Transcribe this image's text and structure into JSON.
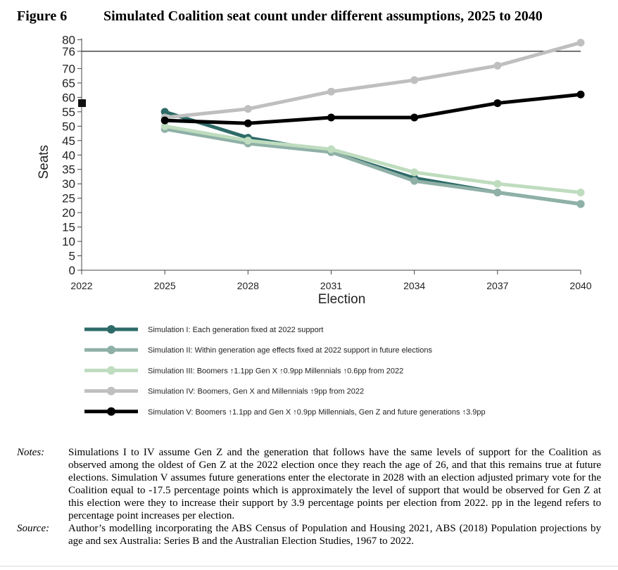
{
  "figure": {
    "label": "Figure 6",
    "title": "Simulated Coalition seat count under different assumptions, 2025 to 2040"
  },
  "chart_data": {
    "type": "line",
    "xlabel": "Election",
    "ylabel": "Seats",
    "x": [
      2022,
      2025,
      2028,
      2031,
      2034,
      2037,
      2040
    ],
    "xlim": [
      2022,
      2040
    ],
    "ylim": [
      0,
      80
    ],
    "yticks": [
      0,
      5,
      10,
      15,
      20,
      25,
      30,
      35,
      40,
      45,
      50,
      55,
      60,
      65,
      70,
      76,
      80
    ],
    "reference_line": {
      "y": 76
    },
    "marker_2022": {
      "x": 2022,
      "y": 58
    },
    "grid": false,
    "legend_position": "bottom",
    "series": [
      {
        "name": "Simulation I:  Each generation fixed at 2022 support",
        "color": "#2e6b68",
        "x": [
          2025,
          2028,
          2031,
          2034,
          2037,
          2040
        ],
        "values": [
          55,
          46,
          41,
          32,
          27,
          23
        ]
      },
      {
        "name": "Simulation II:  Within generation age effects fixed at 2022 support in future elections",
        "color": "#8fb0a7",
        "x": [
          2025,
          2028,
          2031,
          2034,
          2037,
          2040
        ],
        "values": [
          49,
          44,
          41,
          31,
          27,
          23
        ]
      },
      {
        "name": "Simulation III: Boomers ↑1.1pp Gen X ↑0.9pp Millennials ↑0.6pp from 2022",
        "color": "#bfdcbf",
        "x": [
          2025,
          2028,
          2031,
          2034,
          2037,
          2040
        ],
        "values": [
          50,
          45,
          42,
          34,
          30,
          27
        ]
      },
      {
        "name": "Simulation IV:  Boomers, Gen X and Millennials ↑9pp from 2022",
        "color": "#bfbfbf",
        "x": [
          2025,
          2028,
          2031,
          2034,
          2037,
          2040
        ],
        "values": [
          53,
          56,
          62,
          66,
          71,
          79
        ]
      },
      {
        "name": "Simulation V:  Boomers ↑1.1pp and Gen X ↑0.9pp Millennials, Gen Z and future generations ↑3.9pp",
        "color": "#000000",
        "x": [
          2025,
          2028,
          2031,
          2034,
          2037,
          2040
        ],
        "values": [
          52,
          51,
          53,
          53,
          58,
          61
        ]
      }
    ]
  },
  "notes": {
    "label": "Notes:",
    "text": "Simulations I to IV assume Gen Z and the generation that follows have the same levels of support for the Coalition as observed among the oldest of Gen Z at the 2022 election once they reach the age of 26, and that this remains true at future elections. Simulation V assumes future generations enter the electorate in 2028 with an election adjusted primary vote for the Coalition equal to -17.5 percentage points which is approximately the level of support that would be observed for Gen Z at this election were they to increase their support by 3.9 percentage points per election from 2022. pp in the legend refers to percentage point increases per election."
  },
  "source": {
    "label": "Source:",
    "text": "Author’s modelling incorporating the ABS Census of Population and Housing 2021, ABS (2018) Population projections by age and sex Australia: Series B and the Australian Election Studies, 1967 to 2022."
  }
}
